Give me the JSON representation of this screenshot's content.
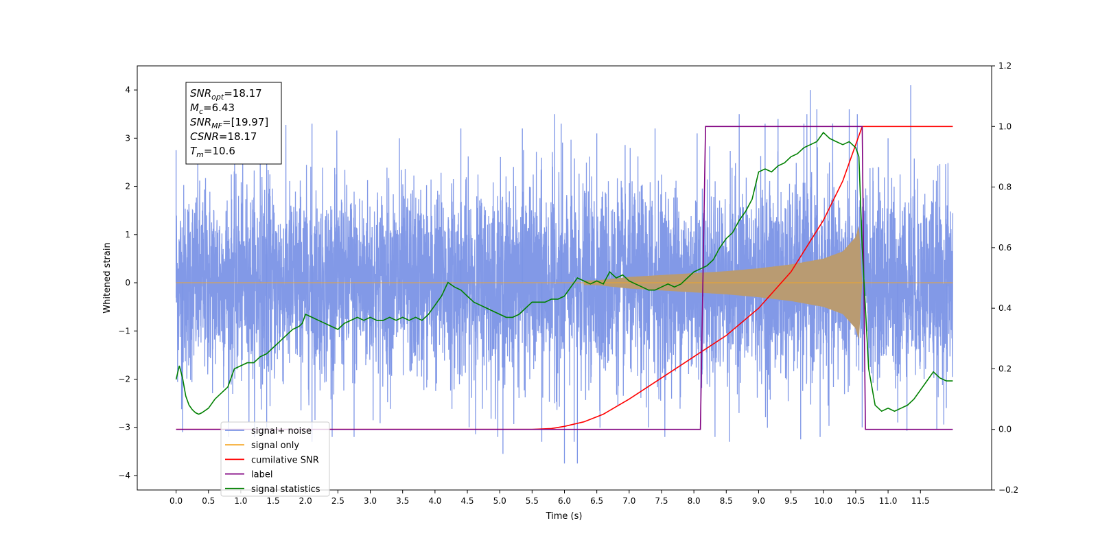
{
  "chart_data": {
    "type": "line",
    "xlabel": "Time (s)",
    "ylabel": "Whitened strain",
    "xlim": [
      -0.6,
      12.6
    ],
    "ylim": [
      -4.3,
      4.5
    ],
    "y2lim": [
      -0.2,
      1.2
    ],
    "x_ticks": [
      0.0,
      0.5,
      1.0,
      1.5,
      2.0,
      2.5,
      3.0,
      3.5,
      4.0,
      4.5,
      5.0,
      5.5,
      6.0,
      6.5,
      7.0,
      7.5,
      8.0,
      8.5,
      9.0,
      9.5,
      10.0,
      10.5,
      11.0,
      11.5
    ],
    "y_ticks": [
      -4,
      -3,
      -2,
      -1,
      0,
      1,
      2,
      3,
      4
    ],
    "y2_ticks": [
      -0.2,
      0.0,
      0.2,
      0.4,
      0.6,
      0.8,
      1.0,
      1.2
    ],
    "grid": false,
    "legend_position": "lower-left",
    "annotation_lines": [
      {
        "base": "SNR",
        "sub": "opt",
        "value": "=18.17"
      },
      {
        "base": "M",
        "sub": "c",
        "value": "=6.43"
      },
      {
        "base": "SNR",
        "sub": "MF",
        "value": "=[19.97]"
      },
      {
        "base": "CSNR",
        "sub": "",
        "value": "=18.17"
      },
      {
        "base": "T",
        "sub": "m",
        "value": "=10.6"
      }
    ],
    "noise": {
      "name": "signal+ noise",
      "color": "#7b94e6",
      "x_range": [
        0.0,
        12.0
      ],
      "typical_envelope": [
        -1.7,
        1.7
      ],
      "range": [
        -3.8,
        4.1
      ],
      "spikes_up": [
        [
          0.0,
          2.75
        ],
        [
          1.3,
          3.1
        ],
        [
          1.4,
          3.2
        ],
        [
          2.1,
          3.3
        ],
        [
          3.45,
          3.0
        ],
        [
          4.4,
          3.2
        ],
        [
          5.35,
          3.2
        ],
        [
          5.85,
          3.5
        ],
        [
          5.95,
          3.3
        ],
        [
          6.5,
          3.1
        ],
        [
          7.4,
          3.2
        ],
        [
          8.05,
          3.1
        ],
        [
          8.7,
          3.5
        ],
        [
          9.1,
          3.3
        ],
        [
          9.3,
          3.4
        ],
        [
          9.7,
          3.3
        ],
        [
          9.8,
          4.0
        ],
        [
          9.9,
          3.6
        ],
        [
          10.4,
          3.6
        ],
        [
          11.35,
          4.1
        ],
        [
          11.0,
          3.0
        ]
      ],
      "spikes_down": [
        [
          0.1,
          -3.1
        ],
        [
          1.4,
          -3.0
        ],
        [
          2.1,
          -3.3
        ],
        [
          2.75,
          -3.2
        ],
        [
          5.05,
          -3.55
        ],
        [
          5.65,
          -3.3
        ],
        [
          6.0,
          -3.75
        ],
        [
          6.2,
          -3.75
        ],
        [
          6.15,
          -3.3
        ],
        [
          7.3,
          -3.0
        ],
        [
          8.55,
          -3.3
        ],
        [
          9.65,
          -3.25
        ],
        [
          9.95,
          -3.2
        ],
        [
          10.6,
          -3.0
        ],
        [
          11.15,
          -2.9
        ],
        [
          11.9,
          -2.6
        ]
      ]
    },
    "signal": {
      "name": "signal only",
      "color": "#f5a623",
      "fill_color": "#b99b72",
      "x": [
        0.0,
        6.5,
        7.0,
        7.5,
        8.0,
        8.5,
        9.0,
        9.5,
        10.0,
        10.3,
        10.5,
        10.55,
        10.6,
        12.0
      ],
      "amplitude": [
        0.02,
        0.05,
        0.12,
        0.16,
        0.2,
        0.24,
        0.3,
        0.38,
        0.5,
        0.65,
        0.95,
        1.2,
        0.0,
        0.0
      ]
    },
    "series": [
      {
        "name": "cumilative SNR",
        "color": "#ff0000",
        "axis": "right",
        "x": [
          0.0,
          5.0,
          5.5,
          5.8,
          6.0,
          6.3,
          6.6,
          7.0,
          7.5,
          8.0,
          8.5,
          9.0,
          9.5,
          10.0,
          10.3,
          10.5,
          10.6,
          12.0
        ],
        "values": [
          0.0,
          0.0,
          0.0,
          0.003,
          0.01,
          0.025,
          0.05,
          0.1,
          0.17,
          0.24,
          0.31,
          0.4,
          0.52,
          0.69,
          0.82,
          0.94,
          1.0,
          1.0
        ]
      },
      {
        "name": "label",
        "color": "#800080",
        "axis": "right",
        "x": [
          0.0,
          8.1,
          8.18,
          10.6,
          10.65,
          12.0
        ],
        "values": [
          0.0,
          0.0,
          1.0,
          1.0,
          0.0,
          0.0
        ]
      },
      {
        "name": "signal statistics",
        "color": "#008000",
        "axis": "right",
        "x": [
          0.0,
          0.05,
          0.1,
          0.15,
          0.2,
          0.25,
          0.3,
          0.35,
          0.4,
          0.5,
          0.6,
          0.7,
          0.8,
          0.9,
          1.0,
          1.1,
          1.2,
          1.3,
          1.4,
          1.5,
          1.6,
          1.7,
          1.8,
          1.9,
          1.95,
          2.0,
          2.1,
          2.2,
          2.3,
          2.4,
          2.5,
          2.6,
          2.7,
          2.8,
          2.9,
          3.0,
          3.1,
          3.2,
          3.3,
          3.4,
          3.5,
          3.6,
          3.7,
          3.8,
          3.9,
          4.0,
          4.1,
          4.2,
          4.3,
          4.4,
          4.5,
          4.6,
          4.7,
          4.8,
          4.9,
          5.0,
          5.1,
          5.2,
          5.3,
          5.4,
          5.5,
          5.6,
          5.7,
          5.8,
          5.9,
          6.0,
          6.1,
          6.2,
          6.3,
          6.4,
          6.5,
          6.6,
          6.7,
          6.8,
          6.9,
          7.0,
          7.1,
          7.2,
          7.3,
          7.4,
          7.5,
          7.6,
          7.7,
          7.8,
          7.9,
          8.0,
          8.1,
          8.2,
          8.3,
          8.4,
          8.5,
          8.6,
          8.7,
          8.8,
          8.9,
          9.0,
          9.1,
          9.2,
          9.3,
          9.4,
          9.5,
          9.6,
          9.7,
          9.8,
          9.9,
          10.0,
          10.1,
          10.2,
          10.3,
          10.4,
          10.5,
          10.55,
          10.6,
          10.7,
          10.8,
          10.9,
          11.0,
          11.1,
          11.2,
          11.3,
          11.4,
          11.5,
          11.6,
          11.7,
          11.8,
          11.9,
          12.0
        ],
        "values": [
          0.165,
          0.21,
          0.17,
          0.11,
          0.08,
          0.065,
          0.055,
          0.05,
          0.055,
          0.07,
          0.1,
          0.12,
          0.14,
          0.2,
          0.21,
          0.22,
          0.22,
          0.24,
          0.25,
          0.27,
          0.29,
          0.31,
          0.33,
          0.34,
          0.35,
          0.38,
          0.37,
          0.36,
          0.35,
          0.34,
          0.33,
          0.35,
          0.36,
          0.37,
          0.36,
          0.37,
          0.36,
          0.36,
          0.37,
          0.36,
          0.37,
          0.36,
          0.37,
          0.36,
          0.38,
          0.41,
          0.44,
          0.485,
          0.47,
          0.46,
          0.44,
          0.42,
          0.41,
          0.4,
          0.39,
          0.38,
          0.37,
          0.37,
          0.38,
          0.4,
          0.42,
          0.42,
          0.42,
          0.43,
          0.43,
          0.44,
          0.47,
          0.5,
          0.49,
          0.48,
          0.49,
          0.48,
          0.52,
          0.5,
          0.51,
          0.49,
          0.48,
          0.47,
          0.46,
          0.46,
          0.47,
          0.48,
          0.47,
          0.48,
          0.5,
          0.52,
          0.53,
          0.54,
          0.56,
          0.6,
          0.63,
          0.65,
          0.69,
          0.72,
          0.76,
          0.85,
          0.86,
          0.85,
          0.87,
          0.88,
          0.9,
          0.91,
          0.93,
          0.94,
          0.95,
          0.98,
          0.96,
          0.95,
          0.94,
          0.95,
          0.93,
          0.9,
          0.6,
          0.2,
          0.08,
          0.06,
          0.07,
          0.06,
          0.07,
          0.08,
          0.1,
          0.13,
          0.16,
          0.19,
          0.17,
          0.16,
          0.16
        ]
      }
    ],
    "legend_entries": [
      {
        "label": "signal+ noise",
        "color": "#7b94e6"
      },
      {
        "label": "signal only",
        "color": "#f5a623"
      },
      {
        "label": "cumilative SNR",
        "color": "#ff0000"
      },
      {
        "label": "label",
        "color": "#800080"
      },
      {
        "label": "signal statistics",
        "color": "#008000"
      }
    ]
  }
}
